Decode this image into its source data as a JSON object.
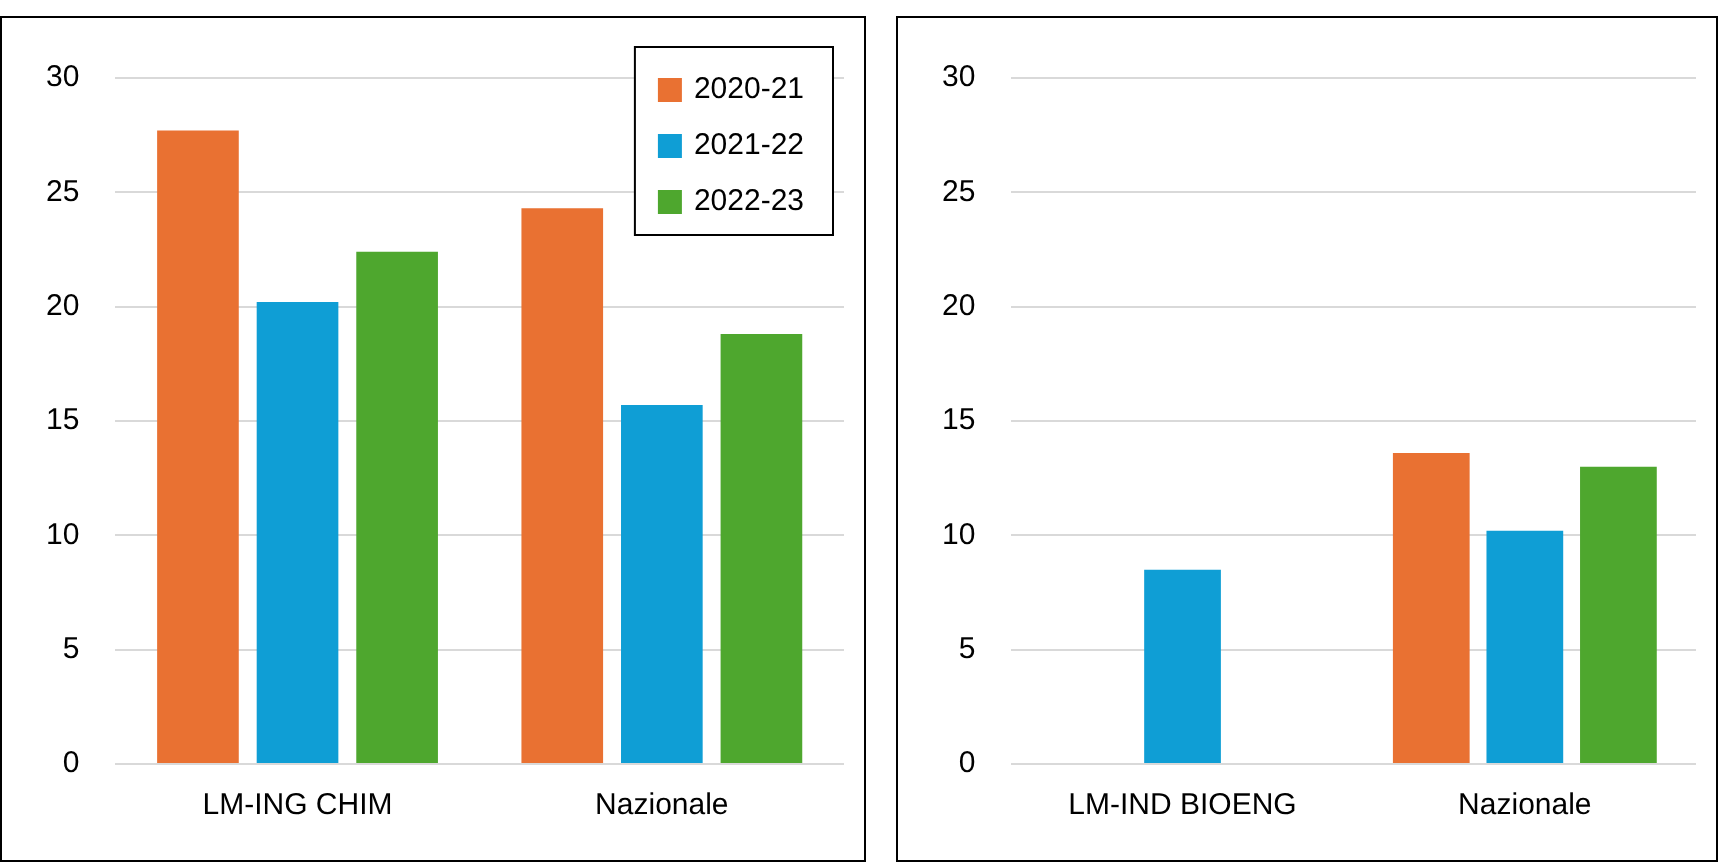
{
  "chart_data": [
    {
      "type": "bar",
      "categories": [
        "LM-ING CHIM",
        "Nazionale"
      ],
      "series": [
        {
          "name": "2020-21",
          "color": "#e97132",
          "values": [
            27.7,
            24.3
          ]
        },
        {
          "name": "2021-22",
          "color": "#0f9ed5",
          "values": [
            20.2,
            15.7
          ]
        },
        {
          "name": "2022-23",
          "color": "#4ea72e",
          "values": [
            22.4,
            18.8
          ]
        }
      ],
      "ylim": [
        0,
        30
      ],
      "yticks": [
        0,
        5,
        10,
        15,
        20,
        25,
        30
      ],
      "grid": "y",
      "legend": "top right"
    },
    {
      "type": "bar",
      "categories": [
        "LM-IND BIOENG",
        "Nazionale"
      ],
      "series": [
        {
          "color": "#e97132",
          "values": [
            null,
            13.6
          ]
        },
        {
          "color": "#0f9ed5",
          "values": [
            8.5,
            10.2
          ]
        },
        {
          "color": "#4ea72e",
          "values": [
            null,
            13.0
          ]
        }
      ],
      "ylim": [
        0,
        30
      ],
      "yticks": [
        0,
        5,
        10,
        15,
        20,
        25,
        30
      ],
      "grid": "y"
    }
  ]
}
